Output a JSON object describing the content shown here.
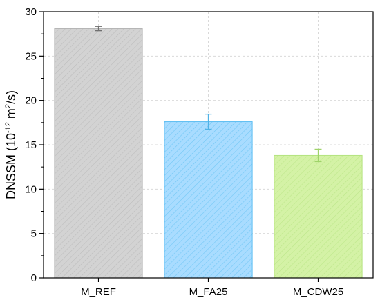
{
  "chart_data": {
    "type": "bar",
    "categories": [
      "M_REF",
      "M_FA25",
      "M_CDW25"
    ],
    "values": [
      28.1,
      17.6,
      13.8
    ],
    "errors": [
      0.25,
      0.85,
      0.7
    ],
    "colors": [
      "#d3d3d3",
      "#a9dcff",
      "#d4f2a6"
    ],
    "edge_colors": [
      "#b4b4b4",
      "#5cbef2",
      "#b4e37f"
    ],
    "error_colors": [
      "#707070",
      "#4fb2e6",
      "#9fd36a"
    ],
    "hatch": "diagonal",
    "ylabel_main": "DNSSM (10",
    "ylabel_sup1": "-12",
    "ylabel_mid": " m",
    "ylabel_sup2": "2",
    "ylabel_end": "/s)",
    "xlabel": "",
    "ylim": [
      0,
      30
    ],
    "yticks": [
      0,
      5,
      10,
      15,
      20,
      25,
      30
    ],
    "grid": true
  }
}
